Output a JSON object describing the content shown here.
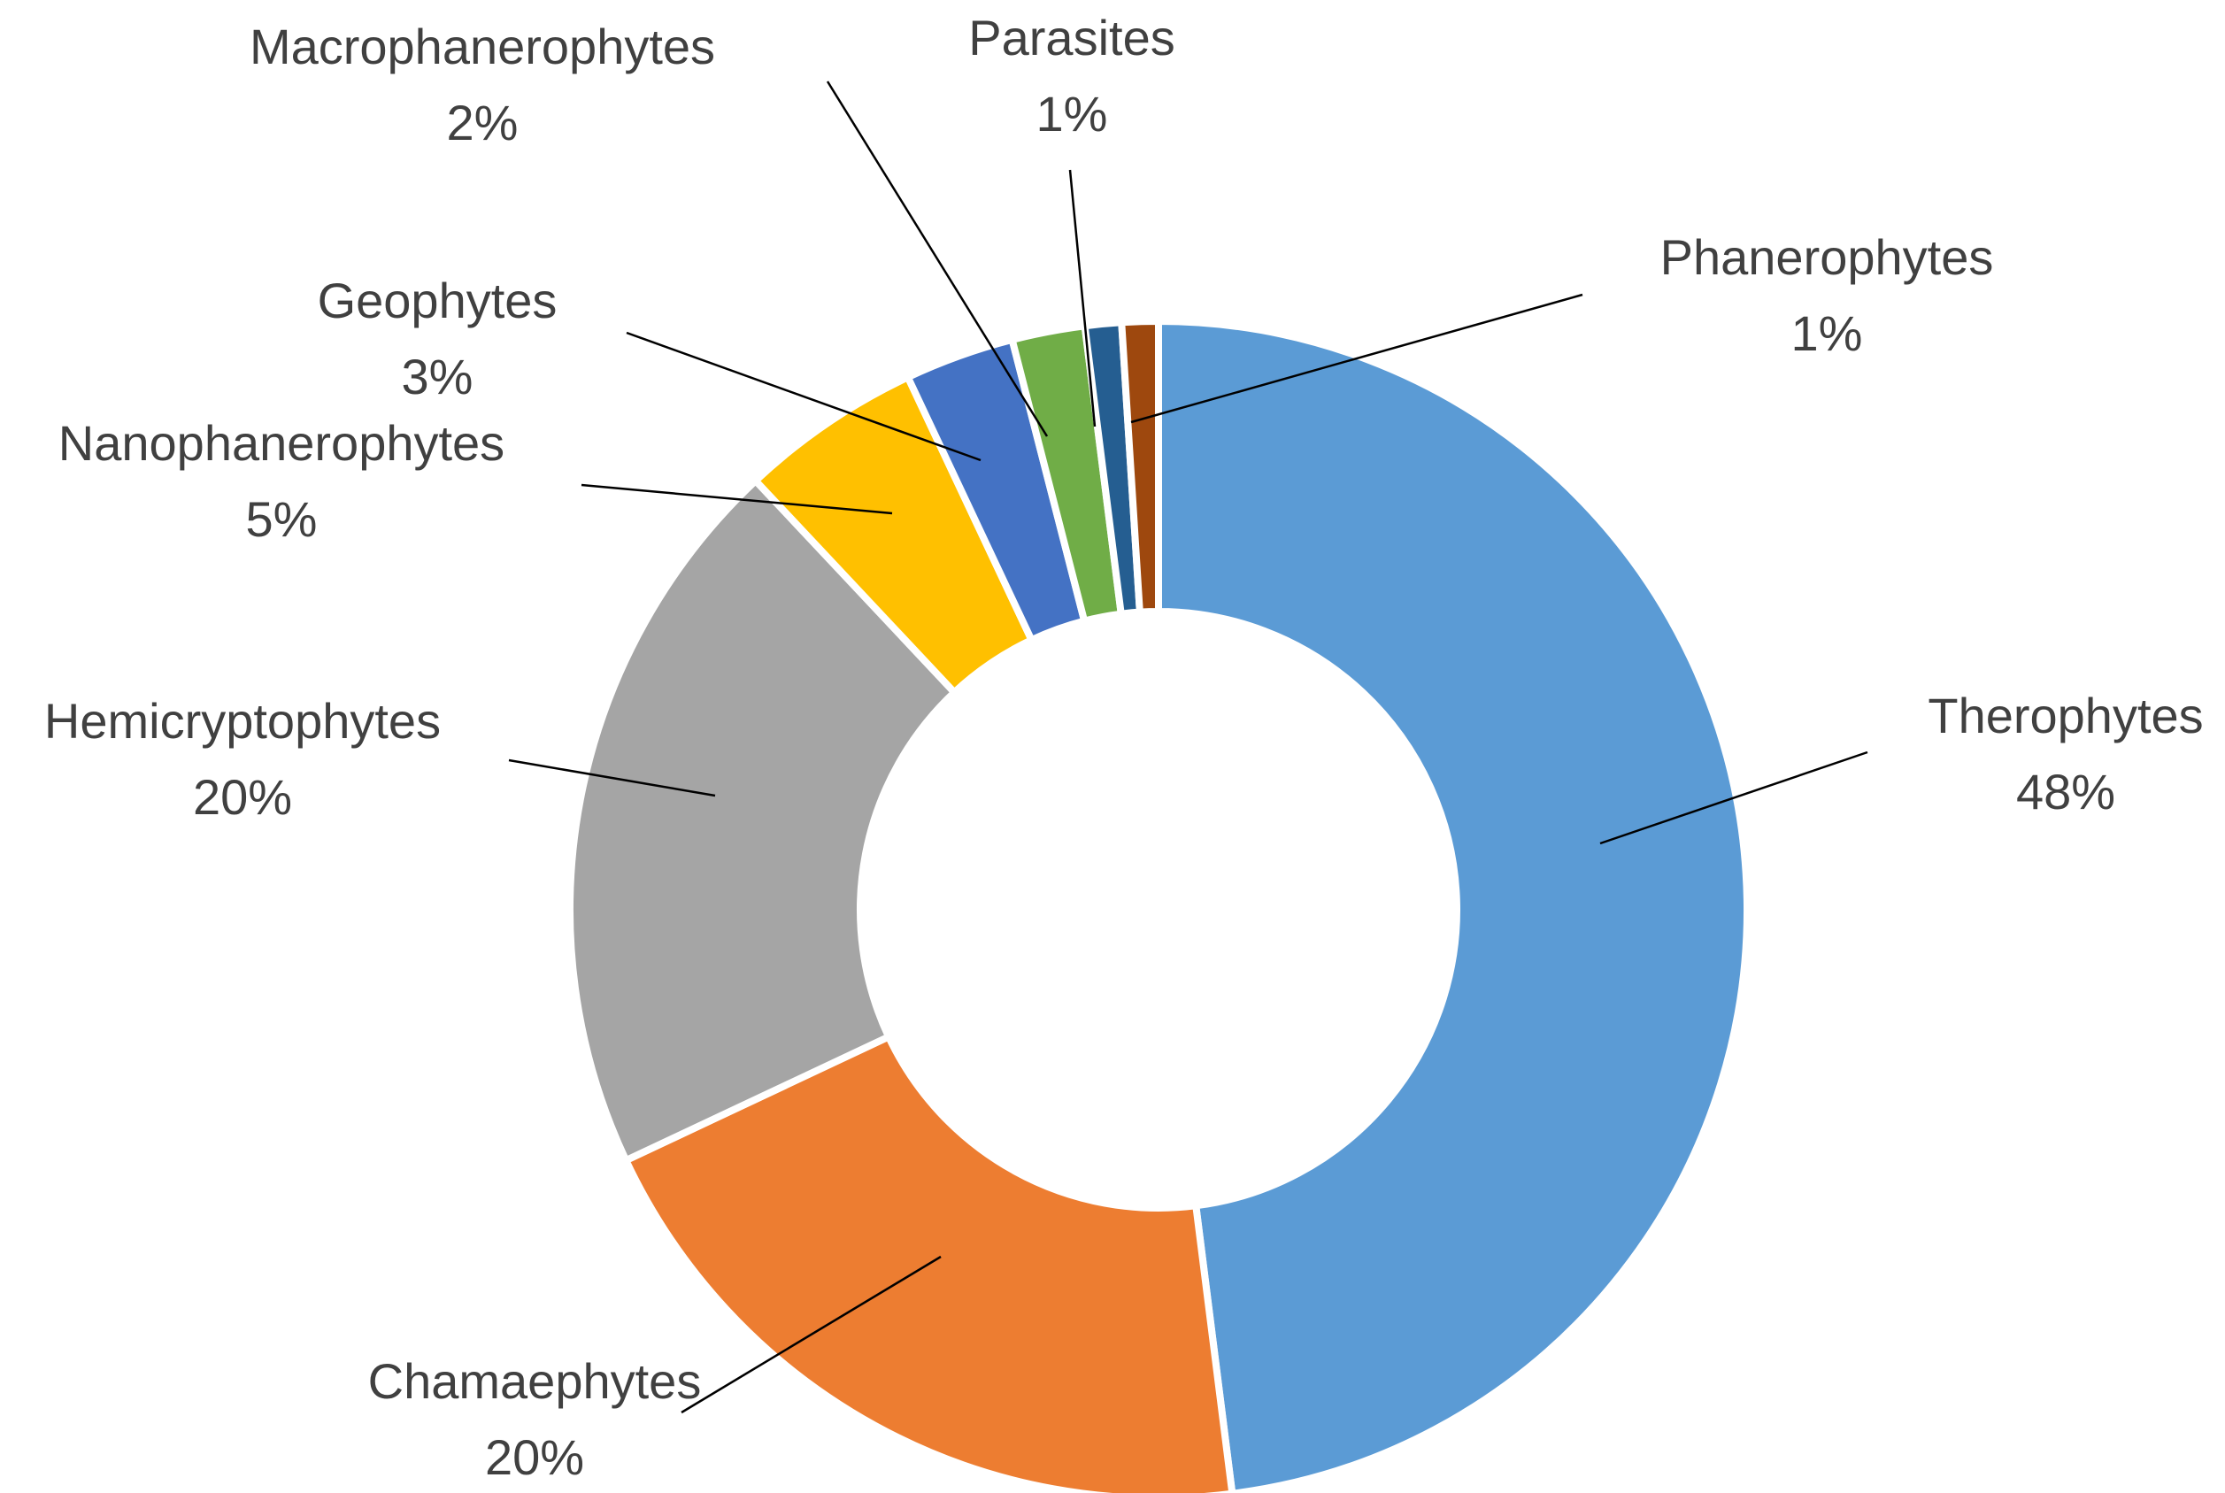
{
  "chart_data": {
    "type": "pie",
    "donut": true,
    "title": "",
    "legend": "none",
    "start_angle_deg": 0,
    "direction": "clockwise",
    "slices": [
      {
        "name": "Therophytes",
        "value": 48,
        "label_pct": "48%",
        "color": "#5B9BD5"
      },
      {
        "name": "Chamaephytes",
        "value": 20,
        "label_pct": "20%",
        "color": "#ED7D31"
      },
      {
        "name": "Hemicryptophytes",
        "value": 20,
        "label_pct": "20%",
        "color": "#A5A5A5"
      },
      {
        "name": "Nanophanerophytes",
        "value": 5,
        "label_pct": "5%",
        "color": "#FFC000"
      },
      {
        "name": "Geophytes",
        "value": 3,
        "label_pct": "3%",
        "color": "#4472C4"
      },
      {
        "name": "Macrophanerophytes",
        "value": 2,
        "label_pct": "2%",
        "color": "#70AD47"
      },
      {
        "name": "Parasites",
        "value": 1,
        "label_pct": "1%",
        "color": "#255E91"
      },
      {
        "name": "Phanerophytes",
        "value": 1,
        "label_pct": "1%",
        "color": "#9E480E"
      }
    ]
  }
}
